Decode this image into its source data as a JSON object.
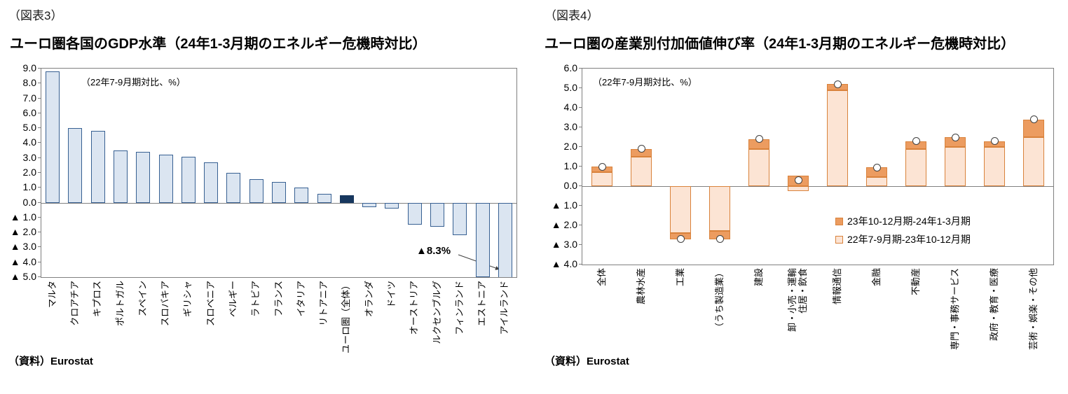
{
  "chart_data": [
    {
      "id": "fig3",
      "type": "bar",
      "tag": "（図表3）",
      "title": "ユーロ圏各国のGDP水準（24年1-3月期のエネルギー危機時対比）",
      "note": "（22年7-9月期対比、%）",
      "source": "（資料）Eurostat",
      "unit": "%",
      "ylim": [
        -5.0,
        9.0
      ],
      "ytick_step": 1.0,
      "ytick_labels": [
        "9.0",
        "8.0",
        "7.0",
        "6.0",
        "5.0",
        "4.0",
        "3.0",
        "2.0",
        "1.0",
        "0.0",
        "▲ 1.0",
        "▲ 2.0",
        "▲ 3.0",
        "▲ 4.0",
        "▲ 5.0"
      ],
      "categories": [
        "マルタ",
        "クロアチア",
        "キプロス",
        "ポルトガル",
        "スペイン",
        "スロバキア",
        "ギリシャ",
        "スロベニア",
        "ベルギー",
        "ラトビア",
        "フランス",
        "イタリア",
        "リトアニア",
        "ユーロ圏（全体）",
        "オランダ",
        "ドイツ",
        "オーストリア",
        "ルクセンブルグ",
        "フィンランド",
        "エストニア",
        "アイルランド"
      ],
      "values": [
        8.8,
        5.0,
        4.8,
        3.5,
        3.4,
        3.2,
        3.1,
        2.7,
        2.0,
        1.6,
        1.4,
        1.0,
        0.6,
        0.5,
        -0.3,
        -0.4,
        -1.5,
        -1.6,
        -2.2,
        -5.0,
        -8.3
      ],
      "highlight_index": 13,
      "annotation": "▲8.3%",
      "annotation_target": "アイルランド",
      "grid": "off",
      "colors": {
        "bar_fill": "#dbe5f1",
        "bar_border": "#376092",
        "highlight_fill": "#17375e"
      }
    },
    {
      "id": "fig4",
      "type": "stacked-bar",
      "tag": "（図表4）",
      "title": "ユーロ圏の産業別付加価値伸び率（24年1-3月期のエネルギー危機時対比）",
      "note": "（22年7-9月期対比、%）",
      "source": "（資料）Eurostat",
      "unit": "%",
      "ylim": [
        -4.0,
        6.0
      ],
      "ytick_step": 1.0,
      "ytick_labels": [
        "6.0",
        "5.0",
        "4.0",
        "3.0",
        "2.0",
        "1.0",
        "0.0",
        "▲ 1.0",
        "▲ 2.0",
        "▲ 3.0",
        "▲ 4.0"
      ],
      "categories": [
        "全体",
        "農林水産",
        "工業",
        "（うち製造業）",
        "建設",
        "卸・小売・運輸\n住居・飲食",
        "情報通信",
        "金融",
        "不動産",
        "専門・事務サービス",
        "政府・教育・医療",
        "芸術・娯楽・その他"
      ],
      "series": [
        {
          "name": "23年10-12月期-24年1-3月期",
          "role": "late",
          "values": [
            0.3,
            0.4,
            -0.3,
            -0.4,
            0.5,
            0.55,
            0.3,
            0.5,
            0.4,
            0.5,
            0.3,
            0.9
          ]
        },
        {
          "name": "22年7-9月期-23年10-12月期",
          "role": "early",
          "values": [
            0.7,
            1.5,
            -2.4,
            -2.3,
            1.9,
            -0.25,
            4.9,
            0.45,
            1.9,
            2.0,
            2.0,
            2.5
          ]
        }
      ],
      "totals": [
        1.0,
        1.9,
        -2.7,
        -2.7,
        2.4,
        0.3,
        5.2,
        0.95,
        2.3,
        2.5,
        2.3,
        3.4
      ],
      "legend_position": "inside-right",
      "grid": "off",
      "colors": {
        "late_fill": "#ec9c60",
        "early_fill": "#fce4d4",
        "seg_border": "#d9823b",
        "marker_border": "#404040"
      }
    }
  ]
}
